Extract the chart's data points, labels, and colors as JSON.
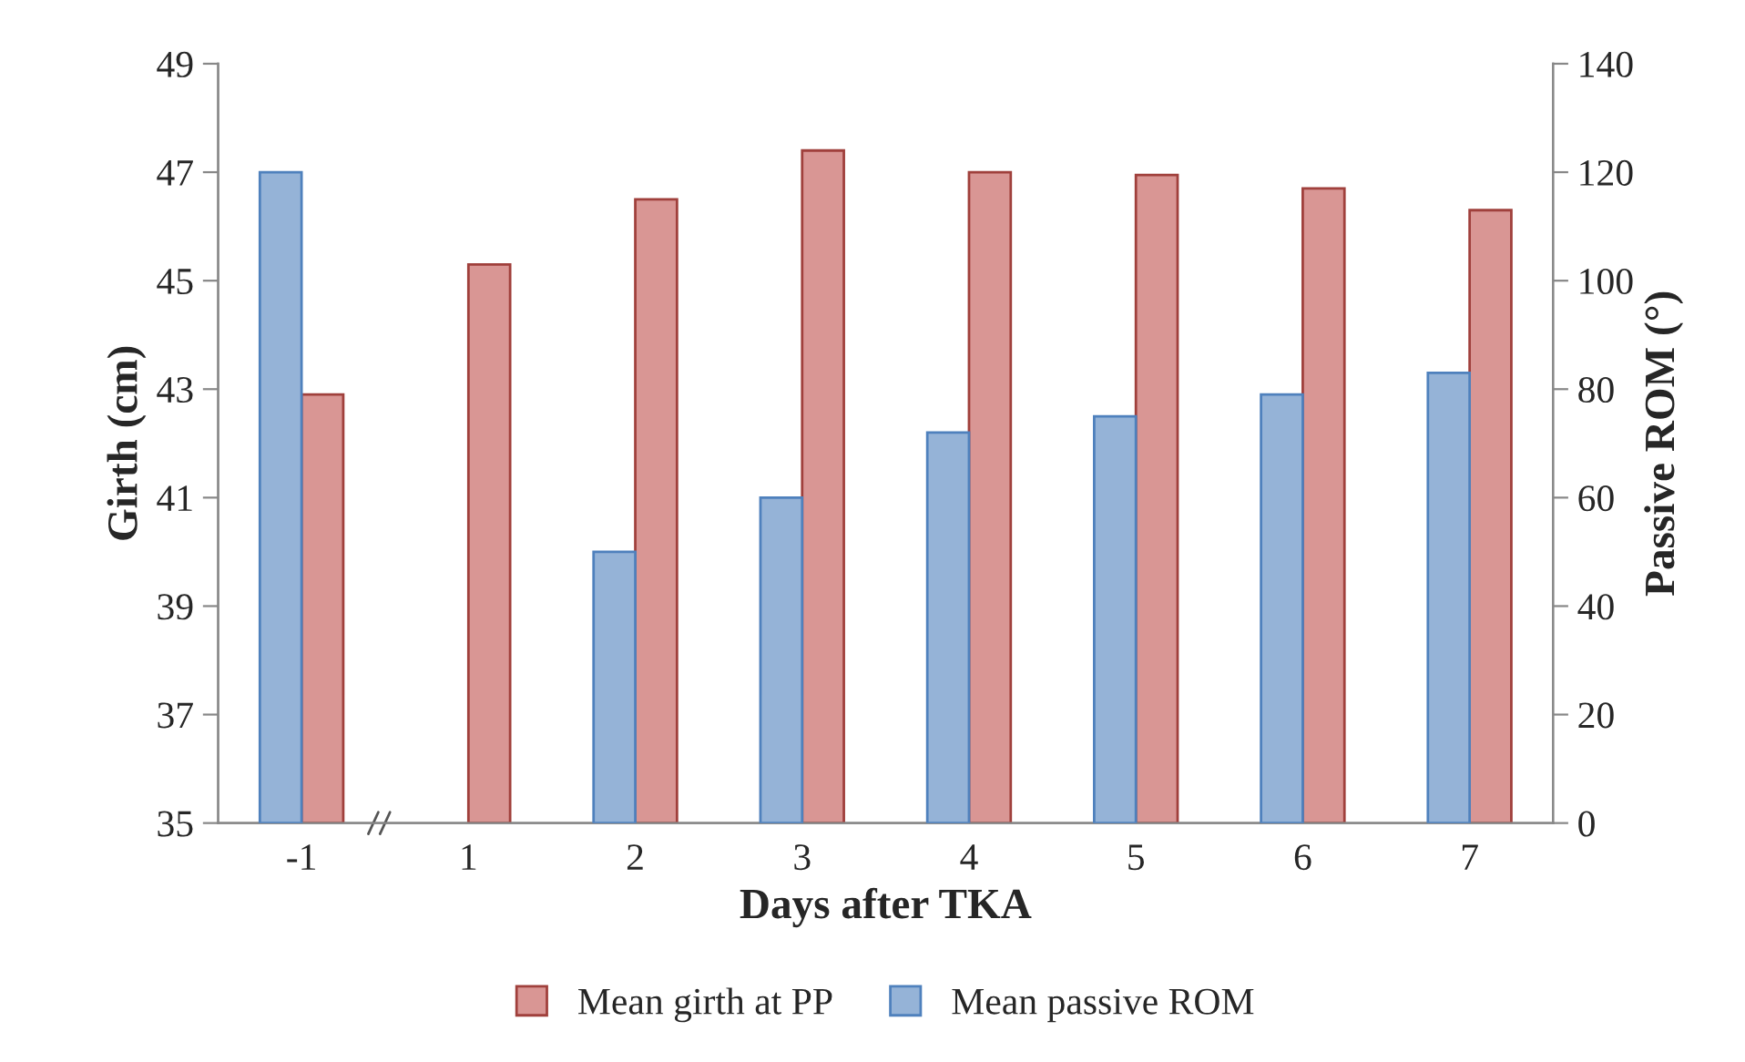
{
  "chart_data": {
    "type": "bar",
    "xlabel": "Days after TKA",
    "ylabel": "Girth (cm)",
    "y2label": "Passive ROM (°)",
    "categories": [
      "-1",
      "1",
      "2",
      "3",
      "4",
      "5",
      "6",
      "7"
    ],
    "series": [
      {
        "name": "Mean passive ROM",
        "color": "#95b3d7",
        "axis": "y2",
        "values": [
          120,
          null,
          50,
          60,
          72,
          75,
          79,
          83
        ]
      },
      {
        "name": "Mean girth at PP",
        "color": "#d99694",
        "axis": "y",
        "values": [
          42.9,
          45.3,
          46.5,
          47.4,
          47.0,
          46.95,
          46.7,
          46.3
        ]
      }
    ],
    "ylim": [
      35,
      49
    ],
    "yticks": [
      35,
      37,
      39,
      41,
      43,
      45,
      47,
      49
    ],
    "y2lim": [
      0,
      140
    ],
    "y2ticks": [
      0,
      20,
      40,
      60,
      80,
      100,
      120,
      140
    ],
    "grid": false,
    "legend": "bottom"
  }
}
